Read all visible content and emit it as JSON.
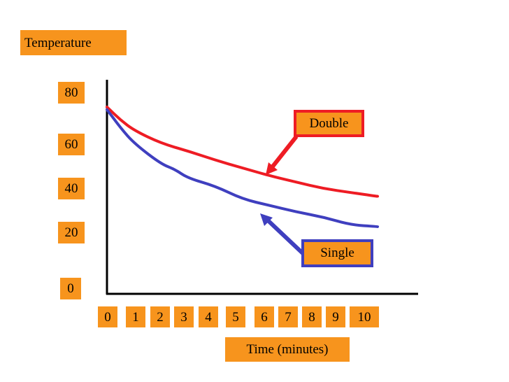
{
  "chart_data": {
    "type": "line",
    "ylabel": "Temperature",
    "xlabel": "Time (minutes)",
    "x_ticks": [
      "0",
      "1",
      "2",
      "3",
      "4",
      "5",
      "6",
      "7",
      "8",
      "9",
      "10"
    ],
    "y_ticks": [
      "0",
      "20",
      "40",
      "60",
      "80"
    ],
    "ylim": [
      0,
      80
    ],
    "xlim": [
      0,
      10
    ],
    "grid": false,
    "series": [
      {
        "name": "Double",
        "color": "#ee1c24",
        "x": [
          0,
          0.5,
          1,
          2,
          3,
          4,
          5,
          6,
          7,
          8,
          9,
          10
        ],
        "y": [
          70,
          65,
          61,
          56,
          53,
          49.5,
          46.5,
          43.5,
          41,
          38.5,
          37,
          35.5
        ]
      },
      {
        "name": "Single",
        "color": "#3f3fbf",
        "x": [
          0,
          0.5,
          1,
          2,
          2.5,
          3,
          4,
          5,
          6,
          7,
          8,
          9,
          10
        ],
        "y": [
          69,
          62,
          56,
          48,
          46,
          42.5,
          39.5,
          34.5,
          32,
          29.5,
          27.5,
          24.5,
          23.8
        ]
      }
    ]
  }
}
